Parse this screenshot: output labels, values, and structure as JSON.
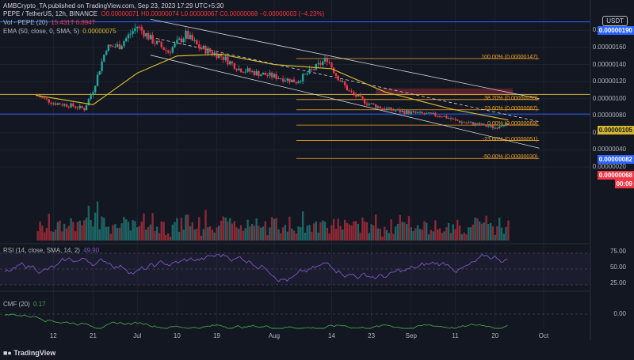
{
  "credit": "AMBCrypto_TA published on TradingView.com, Sep 23, 2023 17:29 UTC+5:30",
  "header": {
    "symbol": "PEPE / TetherUS, 12h, BINANCE",
    "ohlc": "O0.00000071 H0.00000074 L0.00000067 C0.00000068 −0.00000003 (−4.23%)",
    "vol_label": "Vol · PEPE (20)",
    "vol_values": "15.431T 6.894T",
    "ema_label": "EMA (50, close, 0, SMA, 5)",
    "ema_value": "0.00000075"
  },
  "currency_button": "USDT",
  "price_axis": {
    "ticks": [
      "0.00000180",
      "0.00000160",
      "0.00000140",
      "0.00000120",
      "0.00000100",
      "0.00000080",
      "0.00000060",
      "0.00000040",
      "0.00000020"
    ],
    "tags": {
      "top": "0.00000190",
      "ema": "0.00000105",
      "level": "0.00000082",
      "current": "0.00000068",
      "countdown": "00:09"
    }
  },
  "fib_labels": [
    "100.00% (0.00000147)",
    "38.20% (0.00000099)",
    "23.60% (0.00000087)",
    "0.00% (0.00000069)",
    "-23.60% (0.00000051)",
    "-50.00% (0.00000030)"
  ],
  "x_axis": [
    "12",
    "21",
    "Jul",
    "10",
    "19",
    "Aug",
    "14",
    "23",
    "Sep",
    "11",
    "20",
    "Oct"
  ],
  "rsi": {
    "label": "RSI (14, close, SMA, 14, 2)",
    "value": "49.90",
    "ticks": [
      "75.00",
      "50.00",
      "25.00"
    ]
  },
  "cmf": {
    "label": "CMF (20)",
    "value": "0.17",
    "ticks": [
      "0.00"
    ]
  },
  "watermark": "TradingView",
  "colors": {
    "up": "#26a69a",
    "down": "#f23645",
    "ema": "#d4b72c",
    "fib": "#f5a623",
    "rsi": "#7e57c2",
    "cmf": "#43a047",
    "blue_level": "#2962ff",
    "bg": "#131722"
  },
  "chart_data": {
    "type": "candlestick",
    "title": "PEPE / TetherUS, 12h, BINANCE",
    "x_range": [
      "2023-06-08",
      "2023-09-23"
    ],
    "close_path": [
      {
        "date": "2023-06-08",
        "price": 1.04e-06
      },
      {
        "date": "2023-06-12",
        "price": 9.5e-07
      },
      {
        "date": "2023-06-16",
        "price": 9.2e-07
      },
      {
        "date": "2023-06-19",
        "price": 8.8e-07
      },
      {
        "date": "2023-06-21",
        "price": 1.1e-06
      },
      {
        "date": "2023-06-24",
        "price": 1.6e-06
      },
      {
        "date": "2023-06-27",
        "price": 1.62e-06
      },
      {
        "date": "2023-07-01",
        "price": 1.85e-06
      },
      {
        "date": "2023-07-04",
        "price": 1.7e-06
      },
      {
        "date": "2023-07-08",
        "price": 1.55e-06
      },
      {
        "date": "2023-07-12",
        "price": 1.75e-06
      },
      {
        "date": "2023-07-15",
        "price": 1.6e-06
      },
      {
        "date": "2023-07-20",
        "price": 1.5e-06
      },
      {
        "date": "2023-07-24",
        "price": 1.35e-06
      },
      {
        "date": "2023-07-28",
        "price": 1.3e-06
      },
      {
        "date": "2023-08-02",
        "price": 1.25e-06
      },
      {
        "date": "2023-08-06",
        "price": 1.2e-06
      },
      {
        "date": "2023-08-10",
        "price": 1.35e-06
      },
      {
        "date": "2023-08-13",
        "price": 1.47e-06
      },
      {
        "date": "2023-08-15",
        "price": 1.28e-06
      },
      {
        "date": "2023-08-18",
        "price": 1.08e-06
      },
      {
        "date": "2023-08-22",
        "price": 9.5e-07
      },
      {
        "date": "2023-08-26",
        "price": 8.8e-07
      },
      {
        "date": "2023-08-30",
        "price": 8.5e-07
      },
      {
        "date": "2023-09-04",
        "price": 8.2e-07
      },
      {
        "date": "2023-09-08",
        "price": 8e-07
      },
      {
        "date": "2023-09-12",
        "price": 7.3e-07
      },
      {
        "date": "2023-09-16",
        "price": 7e-07
      },
      {
        "date": "2023-09-20",
        "price": 6.6e-07
      },
      {
        "date": "2023-09-22",
        "price": 7.1e-07
      },
      {
        "date": "2023-09-23",
        "price": 6.8e-07
      }
    ],
    "ema50": [
      {
        "date": "2023-06-08",
        "price": 1.04e-06
      },
      {
        "date": "2023-06-21",
        "price": 9.3e-07
      },
      {
        "date": "2023-07-01",
        "price": 1.3e-06
      },
      {
        "date": "2023-07-10",
        "price": 1.5e-06
      },
      {
        "date": "2023-07-20",
        "price": 1.52e-06
      },
      {
        "date": "2023-08-01",
        "price": 1.4e-06
      },
      {
        "date": "2023-08-14",
        "price": 1.35e-06
      },
      {
        "date": "2023-08-26",
        "price": 1.08e-06
      },
      {
        "date": "2023-09-10",
        "price": 8.8e-07
      },
      {
        "date": "2023-09-23",
        "price": 7.5e-07
      }
    ],
    "fib_levels": [
      {
        "pct": 100.0,
        "price": 1.47e-06
      },
      {
        "pct": 38.2,
        "price": 9.9e-07
      },
      {
        "pct": 23.6,
        "price": 8.7e-07
      },
      {
        "pct": 0.0,
        "price": 6.9e-07
      },
      {
        "pct": -23.6,
        "price": 5.1e-07
      },
      {
        "pct": -50.0,
        "price": 3e-07
      }
    ],
    "horizontal_levels": [
      1.9e-06,
      1.05e-06,
      8.2e-07
    ],
    "resistance_zone": [
      1.04e-06,
      1.12e-06
    ],
    "ylim": [
      1.5e-07,
      2e-06
    ],
    "rsi_last": 49.9,
    "cmf_last": 0.17
  }
}
